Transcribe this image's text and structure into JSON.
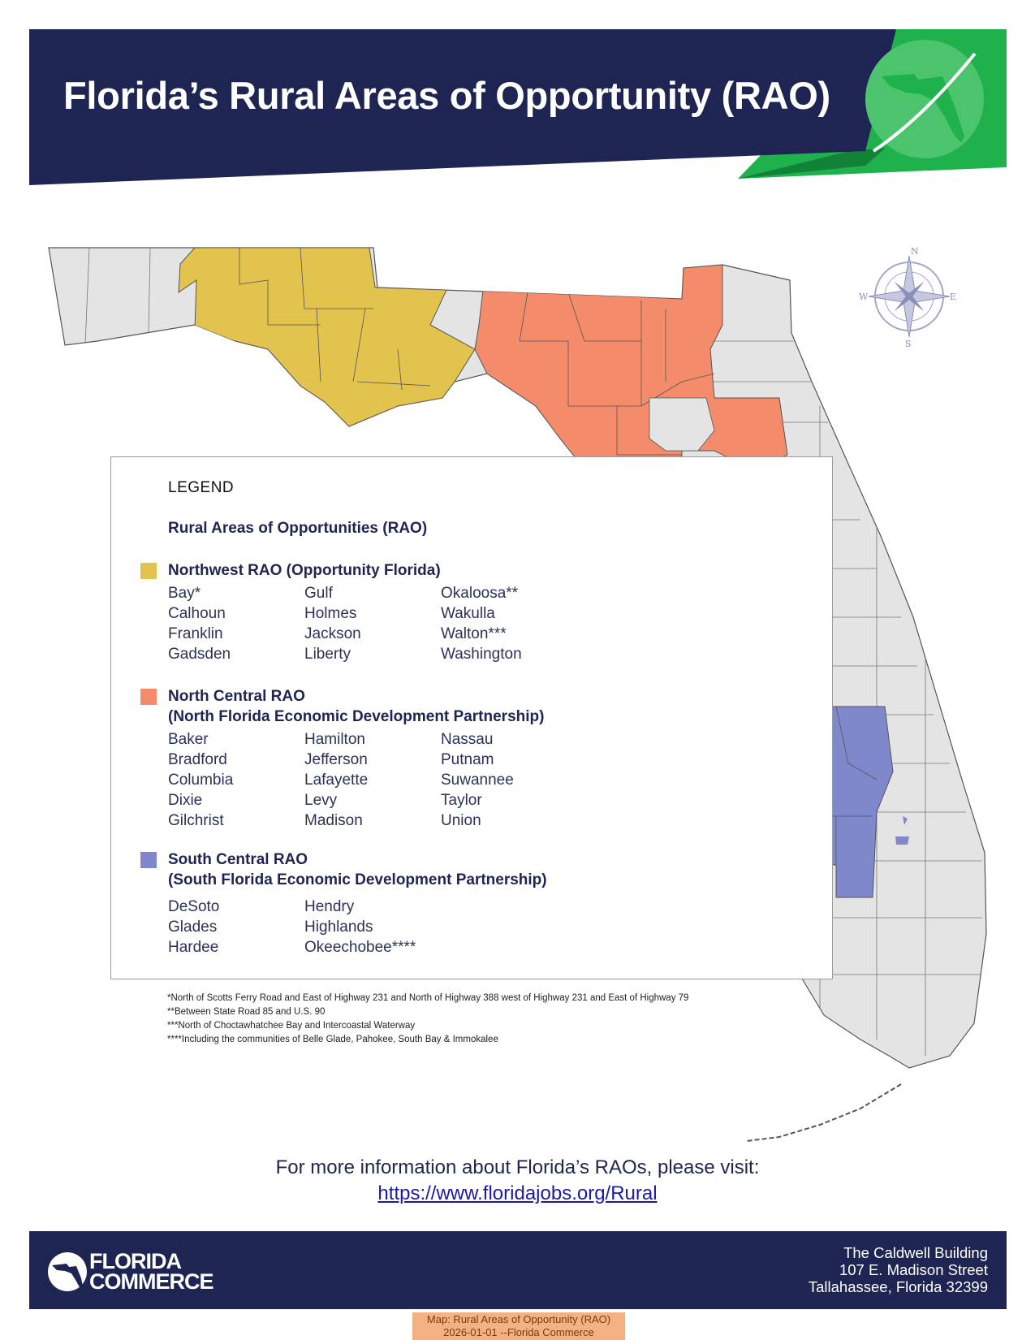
{
  "header": {
    "title": "Florida’s Rural Areas of Opportunity (RAO)"
  },
  "colors": {
    "navy": "#1f2552",
    "green": "#1fb14b",
    "green_dark": "#118238",
    "northwest": "#e2c34d",
    "north_central": "#f48b6b",
    "south_central": "#8088cc",
    "other_county": "#e4e4e4"
  },
  "compass": {
    "n": "N",
    "e": "E",
    "s": "S",
    "w": "W"
  },
  "legend": {
    "title": "LEGEND",
    "subtitle": "Rural Areas of Opportunities (RAO)",
    "regions": [
      {
        "title_lines": [
          "Northwest RAO (Opportunity Florida)"
        ],
        "color": "#e2c34d",
        "columns": [
          [
            "Bay*",
            "Calhoun",
            "Franklin",
            "Gadsden"
          ],
          [
            "Gulf",
            "Holmes",
            "Jackson",
            "Liberty"
          ],
          [
            "Okaloosa**",
            "Wakulla",
            "Walton***",
            "Washington"
          ]
        ]
      },
      {
        "title_lines": [
          "North Central RAO",
          "(North Florida Economic Development Partnership)"
        ],
        "color": "#f48b6b",
        "columns": [
          [
            "Baker",
            "Bradford",
            "Columbia",
            "Dixie",
            "Gilchrist"
          ],
          [
            "Hamilton",
            "Jefferson",
            "Lafayette",
            "Levy",
            "Madison"
          ],
          [
            "Nassau",
            "Putnam",
            "Suwannee",
            "Taylor",
            "Union"
          ]
        ]
      },
      {
        "title_lines": [
          "South Central RAO",
          "(South Florida Economic Development Partnership)"
        ],
        "color": "#8088cc",
        "columns": [
          [
            "DeSoto",
            "Glades",
            "Hardee"
          ],
          [
            "Hendry",
            "Highlands",
            "Okeechobee****"
          ]
        ]
      }
    ]
  },
  "footnotes": [
    "*North of Scotts Ferry Road and East of Highway 231 and North of Highway 388 west of Highway 231 and East of Highway 79",
    "**Between State Road 85 and U.S. 90",
    "***North of Choctawhatchee Bay and Intercoastal Waterway",
    "****Including the communities of Belle Glade, Pahokee, South Bay & Immokalee"
  ],
  "more_info": {
    "text": "For more information about Florida’s RAOs, please visit:",
    "link": "https://www.floridajobs.org/Rural"
  },
  "footer": {
    "logo_line1": "FLORIDA",
    "logo_line2": "COMMERCE",
    "address": [
      "The Caldwell Building",
      "107 E. Madison Street",
      "Tallahassee, Florida 32399"
    ]
  },
  "source_tag": [
    "Map: Rural Areas of Opportunity (RAO)",
    "2026-01-01 --Florida Commerce"
  ]
}
